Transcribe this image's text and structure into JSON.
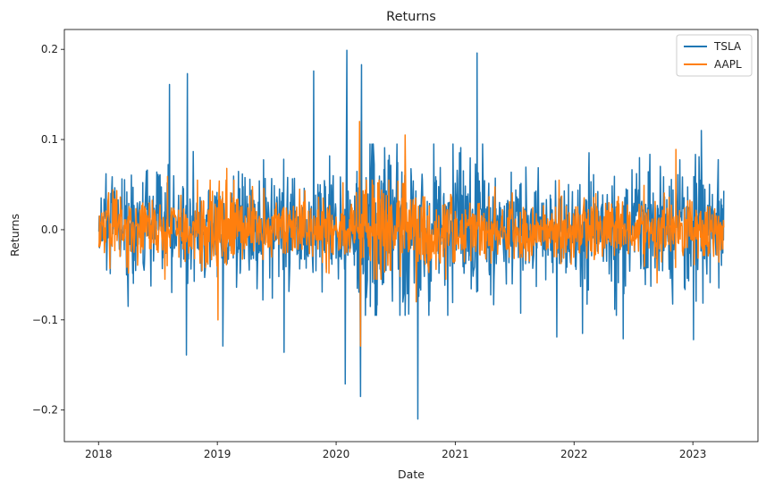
{
  "chart_data": {
    "type": "line",
    "title": "Returns",
    "xlabel": "Date",
    "ylabel": "Returns",
    "x_start": "2018-01-02",
    "x_end": "2023-04-06",
    "xlim": [
      "2017-09-18",
      "2023-07-20"
    ],
    "ylim": [
      -0.235,
      0.222
    ],
    "x_ticks": [
      "2018-01-01",
      "2019-01-01",
      "2020-01-01",
      "2021-01-01",
      "2022-01-01",
      "2023-01-01"
    ],
    "x_tick_labels": [
      "2018",
      "2019",
      "2020",
      "2021",
      "2022",
      "2023"
    ],
    "y_ticks": [
      -0.2,
      -0.1,
      0.0,
      0.1,
      0.2
    ],
    "y_tick_labels": [
      "−0.2",
      "−0.1",
      "0.0",
      "0.1",
      "0.2"
    ],
    "grid": false,
    "legend_position": "top-right",
    "series": [
      {
        "name": "TSLA",
        "color": "#1f77b4",
        "notable_points": [
          {
            "x": "2018-01-24",
            "y": 0.062
          },
          {
            "x": "2018-04-02",
            "y": -0.085
          },
          {
            "x": "2018-08-07",
            "y": 0.161
          },
          {
            "x": "2018-09-28",
            "y": -0.139
          },
          {
            "x": "2018-10-01",
            "y": 0.173
          },
          {
            "x": "2019-01-18",
            "y": -0.129
          },
          {
            "x": "2019-07-25",
            "y": -0.136
          },
          {
            "x": "2019-10-24",
            "y": 0.176
          },
          {
            "x": "2020-01-29",
            "y": -0.171
          },
          {
            "x": "2020-02-03",
            "y": 0.199
          },
          {
            "x": "2020-03-16",
            "y": -0.185
          },
          {
            "x": "2020-03-19",
            "y": 0.183
          },
          {
            "x": "2020-09-08",
            "y": -0.21
          },
          {
            "x": "2021-03-09",
            "y": 0.196
          },
          {
            "x": "2021-11-09",
            "y": -0.119
          },
          {
            "x": "2022-01-27",
            "y": -0.115
          },
          {
            "x": "2022-06-01",
            "y": -0.121
          },
          {
            "x": "2023-01-03",
            "y": -0.122
          },
          {
            "x": "2023-01-27",
            "y": 0.11
          }
        ]
      },
      {
        "name": "AAPL",
        "color": "#ff7f0e",
        "notable_points": [
          {
            "x": "2018-02-05",
            "y": -0.043
          },
          {
            "x": "2018-08-01",
            "y": 0.059
          },
          {
            "x": "2019-01-03",
            "y": -0.1
          },
          {
            "x": "2019-01-30",
            "y": 0.068
          },
          {
            "x": "2020-03-13",
            "y": 0.12
          },
          {
            "x": "2020-03-16",
            "y": -0.129
          },
          {
            "x": "2020-07-31",
            "y": 0.105
          },
          {
            "x": "2020-09-03",
            "y": -0.08
          },
          {
            "x": "2022-11-10",
            "y": 0.089
          },
          {
            "x": "2022-09-13",
            "y": -0.059
          }
        ]
      }
    ]
  }
}
